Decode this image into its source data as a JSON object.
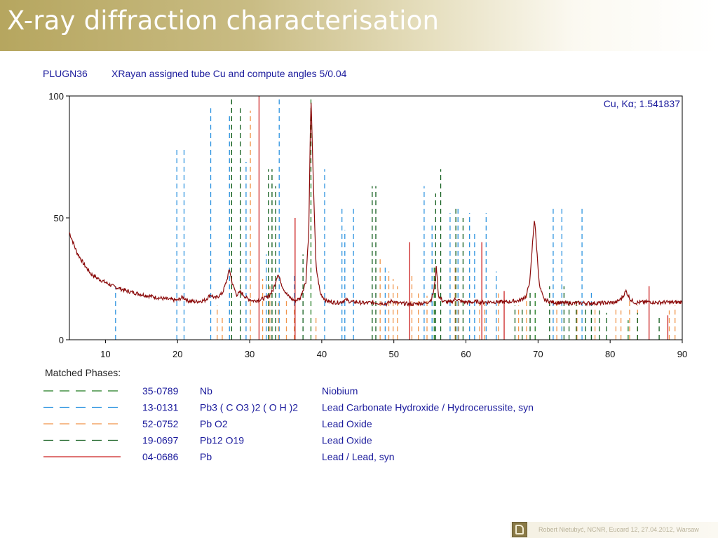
{
  "slide": {
    "title": "X-ray diffraction characterisation"
  },
  "header": {
    "sample_id": "PLUGN36",
    "description": "XRayan assigned tube Cu and compute angles 5/0.04"
  },
  "chart_annotation": "Cu, Kα; 1.541837",
  "matched_phases": {
    "title": "Matched Phases:",
    "entries": [
      {
        "card": "35-0789",
        "formula": "Nb",
        "name": "Niobium",
        "color": "#1e7a1e",
        "dash": "14 9"
      },
      {
        "card": "13-0131",
        "formula": "Pb3 ( C O3 )2 ( O H )2",
        "name": "Lead Carbonate Hydroxide / Hydrocerussite, syn",
        "color": "#2e94e0",
        "dash": "14 9"
      },
      {
        "card": "52-0752",
        "formula": "Pb O2",
        "name": "Lead Oxide",
        "color": "#f0954a",
        "dash": "14 9"
      },
      {
        "card": "19-0697",
        "formula": "Pb12 O19",
        "name": "Lead Oxide",
        "color": "#0f5c1a",
        "dash": "14 9"
      },
      {
        "card": "04-0686",
        "formula": "Pb",
        "name": "Lead / Lead, syn",
        "color": "#cc2222",
        "dash": "none"
      }
    ]
  },
  "footer": {
    "text": "Robert Nietubyć, NCNR,  Eucard 12, 27.04.2012, Warsaw"
  },
  "chart_data": {
    "type": "line",
    "xlim": [
      5,
      90
    ],
    "ylim": [
      0,
      100
    ],
    "x_ticks": [
      10,
      20,
      30,
      40,
      50,
      60,
      70,
      80,
      90
    ],
    "y_ticks": [
      0,
      50,
      100
    ],
    "title": "",
    "xlabel": "",
    "ylabel": "",
    "trace_color": "#8b0a0a",
    "profile": [
      [
        5,
        44
      ],
      [
        5.5,
        40
      ],
      [
        6,
        36
      ],
      [
        7,
        31
      ],
      [
        8,
        27
      ],
      [
        9,
        25
      ],
      [
        10,
        23.5
      ],
      [
        11,
        22
      ],
      [
        12,
        21
      ],
      [
        13,
        20
      ],
      [
        14,
        19.3
      ],
      [
        15,
        18.6
      ],
      [
        16,
        18
      ],
      [
        17,
        17.4
      ],
      [
        18,
        16.9
      ],
      [
        19,
        16.5
      ],
      [
        20,
        16.2
      ],
      [
        20.7,
        17.5
      ],
      [
        21.5,
        16
      ],
      [
        22.5,
        15.6
      ],
      [
        23.8,
        16.2
      ],
      [
        24.6,
        18.5
      ],
      [
        25.2,
        17
      ],
      [
        26.2,
        19
      ],
      [
        26.8,
        24
      ],
      [
        27.2,
        29
      ],
      [
        27.6,
        23
      ],
      [
        28.2,
        18.5
      ],
      [
        28.8,
        19.5
      ],
      [
        29.6,
        17
      ],
      [
        30.5,
        16
      ],
      [
        31.5,
        16.5
      ],
      [
        32.5,
        17.5
      ],
      [
        33.2,
        20
      ],
      [
        33.9,
        27
      ],
      [
        34.6,
        21.5
      ],
      [
        35.3,
        18
      ],
      [
        36.2,
        16
      ],
      [
        37,
        17
      ],
      [
        37.8,
        24
      ],
      [
        38.2,
        45
      ],
      [
        38.5,
        100
      ],
      [
        38.8,
        68
      ],
      [
        39.2,
        30
      ],
      [
        39.8,
        19
      ],
      [
        40.6,
        16
      ],
      [
        41.5,
        15.4
      ],
      [
        42.5,
        15.3
      ],
      [
        43.3,
        16.4
      ],
      [
        44,
        15.6
      ],
      [
        45,
        15.4
      ],
      [
        46,
        15
      ],
      [
        47,
        15.3
      ],
      [
        48,
        15.1
      ],
      [
        49,
        14.8
      ],
      [
        49.8,
        16
      ],
      [
        50.5,
        15
      ],
      [
        51.5,
        14.8
      ],
      [
        52.5,
        14.6
      ],
      [
        53.5,
        14.9
      ],
      [
        54.5,
        15.1
      ],
      [
        55.2,
        16.5
      ],
      [
        55.6,
        21
      ],
      [
        55.9,
        30
      ],
      [
        56.2,
        18
      ],
      [
        56.8,
        15.8
      ],
      [
        57.8,
        15.3
      ],
      [
        58.6,
        16.8
      ],
      [
        59.4,
        15.6
      ],
      [
        60.5,
        15.4
      ],
      [
        61.5,
        15.6
      ],
      [
        62.5,
        15.4
      ],
      [
        63.5,
        15.5
      ],
      [
        64.5,
        15.6
      ],
      [
        65.5,
        15.4
      ],
      [
        66.5,
        15.8
      ],
      [
        67.5,
        16.2
      ],
      [
        68.4,
        18
      ],
      [
        68.9,
        25
      ],
      [
        69.2,
        38
      ],
      [
        69.5,
        50
      ],
      [
        69.8,
        38
      ],
      [
        70.2,
        22
      ],
      [
        70.8,
        16.5
      ],
      [
        71.8,
        15.5
      ],
      [
        72.8,
        15.2
      ],
      [
        73.8,
        15
      ],
      [
        74.8,
        15
      ],
      [
        75.8,
        15.1
      ],
      [
        76.8,
        15
      ],
      [
        77.8,
        15
      ],
      [
        78.8,
        15.1
      ],
      [
        79.8,
        15.2
      ],
      [
        80.8,
        15.3
      ],
      [
        81.6,
        17
      ],
      [
        82.2,
        20
      ],
      [
        82.8,
        16.5
      ],
      [
        83.5,
        15.2
      ],
      [
        84.5,
        15.4
      ],
      [
        85.5,
        15.6
      ],
      [
        86.5,
        15.2
      ],
      [
        87.5,
        15.4
      ],
      [
        88.5,
        15.3
      ],
      [
        89.5,
        15.4
      ],
      [
        90,
        15.5
      ]
    ],
    "series": [
      {
        "name": "35-0789",
        "color": "#1e7a1e",
        "dash": "7 5",
        "sticks": [
          [
            38.5,
            100
          ],
          [
            55.6,
            30
          ],
          [
            69.6,
            20
          ],
          [
            82.5,
            8
          ]
        ]
      },
      {
        "name": "13-0131",
        "color": "#2e94e0",
        "dash": "7 5",
        "sticks": [
          [
            11.4,
            22
          ],
          [
            19.9,
            78
          ],
          [
            20.9,
            78
          ],
          [
            24.6,
            95
          ],
          [
            27.2,
            92
          ],
          [
            29.5,
            73
          ],
          [
            32.3,
            35
          ],
          [
            34.1,
            100
          ],
          [
            36.2,
            27
          ],
          [
            40.4,
            70
          ],
          [
            42.8,
            55
          ],
          [
            43.2,
            45
          ],
          [
            44.4,
            55
          ],
          [
            48.8,
            30
          ],
          [
            54.2,
            63
          ],
          [
            55.3,
            47
          ],
          [
            57.8,
            52
          ],
          [
            58.9,
            54
          ],
          [
            60.5,
            52
          ],
          [
            61.2,
            44
          ],
          [
            62.8,
            52
          ],
          [
            64.2,
            28
          ],
          [
            72.1,
            55
          ],
          [
            73.3,
            55
          ],
          [
            76.1,
            55
          ],
          [
            77.4,
            20
          ]
        ]
      },
      {
        "name": "52-0752",
        "color": "#f0954a",
        "dash": "7 5",
        "sticks": [
          [
            25.5,
            14
          ],
          [
            26.2,
            10
          ],
          [
            30.1,
            94
          ],
          [
            31.8,
            25
          ],
          [
            32.8,
            22
          ],
          [
            34.0,
            15
          ],
          [
            35.1,
            17
          ],
          [
            36.2,
            14
          ],
          [
            39.2,
            10
          ],
          [
            48.1,
            33
          ],
          [
            49.3,
            28
          ],
          [
            49.9,
            25
          ],
          [
            50.5,
            22
          ],
          [
            52.5,
            27
          ],
          [
            53.4,
            19
          ],
          [
            54.6,
            18
          ],
          [
            58.5,
            30
          ],
          [
            59.0,
            16
          ],
          [
            61.9,
            15
          ],
          [
            62.6,
            17
          ],
          [
            64.5,
            19
          ],
          [
            67.3,
            14
          ],
          [
            68.4,
            19
          ],
          [
            72.6,
            17
          ],
          [
            75.4,
            14
          ],
          [
            77.9,
            14
          ],
          [
            80.8,
            13
          ],
          [
            81.5,
            12
          ],
          [
            82.7,
            16
          ],
          [
            83.8,
            14
          ],
          [
            88.2,
            12
          ],
          [
            89.0,
            14
          ]
        ]
      },
      {
        "name": "19-0697",
        "color": "#0f5c1a",
        "dash": "7 5",
        "sticks": [
          [
            27.5,
            100
          ],
          [
            28.7,
            95
          ],
          [
            32.6,
            70
          ],
          [
            33.1,
            70
          ],
          [
            33.6,
            63
          ],
          [
            37.4,
            35
          ],
          [
            47.0,
            63
          ],
          [
            47.5,
            63
          ],
          [
            55.8,
            60
          ],
          [
            56.5,
            70
          ],
          [
            58.6,
            55
          ],
          [
            59.6,
            50
          ],
          [
            66.8,
            14
          ],
          [
            67.8,
            13
          ],
          [
            68.9,
            20
          ],
          [
            71.6,
            22
          ],
          [
            73.6,
            22
          ],
          [
            74.3,
            17
          ],
          [
            75.3,
            16
          ],
          [
            76.6,
            14
          ],
          [
            77.4,
            14
          ],
          [
            78.5,
            12
          ],
          [
            79.5,
            11
          ],
          [
            83.8,
            11
          ],
          [
            86.8,
            10
          ]
        ]
      },
      {
        "name": "04-0686",
        "color": "#cc2222",
        "dash": "none",
        "sticks": [
          [
            31.3,
            100
          ],
          [
            36.3,
            50
          ],
          [
            52.2,
            40
          ],
          [
            62.2,
            40
          ],
          [
            65.3,
            20
          ],
          [
            85.4,
            22
          ],
          [
            88.0,
            10
          ]
        ]
      }
    ]
  }
}
